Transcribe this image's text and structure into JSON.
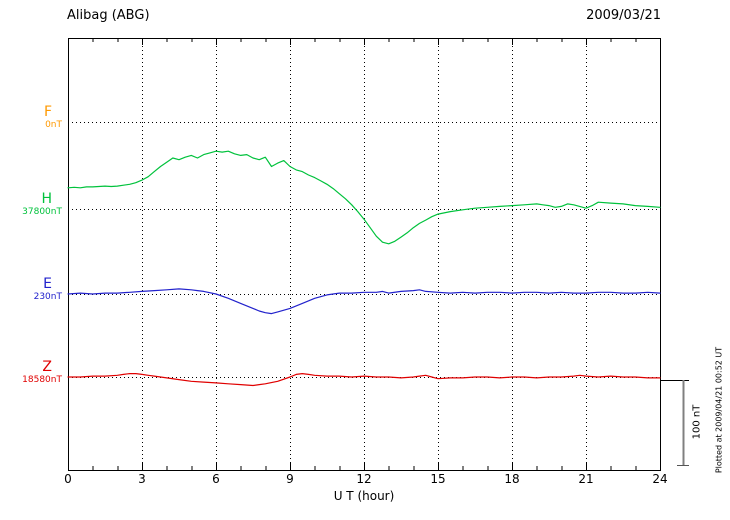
{
  "header": {
    "station": "Alibag (ABG)",
    "date": "2009/03/21"
  },
  "footer_note": "Plotted at 2009/04/21 00:52 UT",
  "scale_bar": {
    "label": "100 nT"
  },
  "chart_data": {
    "type": "line",
    "title": "Alibag (ABG)",
    "subtitle": "2009/03/21",
    "xlabel": "U T (hour)",
    "x_range": [
      0,
      24
    ],
    "x_ticks": [
      0,
      3,
      6,
      9,
      12,
      15,
      18,
      21,
      24
    ],
    "grid": "dotted vertical line every 3 h; dotted horizontal baseline for each component",
    "scale_bar_nT": 100,
    "units": "nT relative to each component baseline",
    "series": [
      {
        "name": "F",
        "baseline_label": "0nT",
        "color": "#ff9900",
        "points": []
      },
      {
        "name": "H",
        "baseline_label": "37800nT",
        "color": "#00c23c",
        "points": [
          [
            0,
            25
          ],
          [
            0.25,
            25.5
          ],
          [
            0.5,
            25
          ],
          [
            0.75,
            26
          ],
          [
            1,
            26
          ],
          [
            1.25,
            26.5
          ],
          [
            1.5,
            27
          ],
          [
            1.75,
            26.5
          ],
          [
            2,
            27
          ],
          [
            2.25,
            28
          ],
          [
            2.5,
            29
          ],
          [
            2.75,
            31
          ],
          [
            3,
            34
          ],
          [
            3.25,
            38
          ],
          [
            3.5,
            44
          ],
          [
            3.75,
            50
          ],
          [
            4,
            55
          ],
          [
            4.25,
            60
          ],
          [
            4.5,
            58
          ],
          [
            4.75,
            61
          ],
          [
            5,
            63
          ],
          [
            5.25,
            60
          ],
          [
            5.5,
            64
          ],
          [
            5.75,
            66
          ],
          [
            6,
            68
          ],
          [
            6.25,
            67
          ],
          [
            6.5,
            68
          ],
          [
            6.75,
            65
          ],
          [
            7,
            63
          ],
          [
            7.25,
            64
          ],
          [
            7.5,
            60
          ],
          [
            7.75,
            58
          ],
          [
            8,
            61
          ],
          [
            8.25,
            50
          ],
          [
            8.5,
            54
          ],
          [
            8.75,
            57
          ],
          [
            9,
            50
          ],
          [
            9.25,
            46
          ],
          [
            9.5,
            44
          ],
          [
            9.75,
            40
          ],
          [
            10,
            37
          ],
          [
            10.25,
            33
          ],
          [
            10.5,
            29
          ],
          [
            10.75,
            24
          ],
          [
            11,
            18
          ],
          [
            11.25,
            12
          ],
          [
            11.5,
            5
          ],
          [
            11.75,
            -3
          ],
          [
            12,
            -12
          ],
          [
            12.25,
            -22
          ],
          [
            12.5,
            -32
          ],
          [
            12.75,
            -39
          ],
          [
            13,
            -41
          ],
          [
            13.25,
            -38
          ],
          [
            13.5,
            -33
          ],
          [
            13.75,
            -28
          ],
          [
            14,
            -22
          ],
          [
            14.25,
            -17
          ],
          [
            14.5,
            -13
          ],
          [
            14.75,
            -9
          ],
          [
            15,
            -6
          ],
          [
            15.5,
            -3
          ],
          [
            16,
            -1
          ],
          [
            16.5,
            1
          ],
          [
            17,
            2
          ],
          [
            17.5,
            3
          ],
          [
            18,
            4
          ],
          [
            18.5,
            5
          ],
          [
            19,
            6
          ],
          [
            19.25,
            5
          ],
          [
            19.5,
            4
          ],
          [
            19.75,
            2
          ],
          [
            20,
            3
          ],
          [
            20.25,
            6
          ],
          [
            20.5,
            5
          ],
          [
            21,
            1
          ],
          [
            21.25,
            4
          ],
          [
            21.5,
            8
          ],
          [
            22,
            7
          ],
          [
            22.5,
            6
          ],
          [
            23,
            4
          ],
          [
            23.5,
            3
          ],
          [
            24,
            2
          ]
        ]
      },
      {
        "name": "E",
        "baseline_label": "230nT",
        "color": "#2222cc",
        "points": [
          [
            0,
            0
          ],
          [
            0.5,
            1
          ],
          [
            1,
            0
          ],
          [
            1.5,
            1
          ],
          [
            2,
            1
          ],
          [
            2.5,
            2
          ],
          [
            3,
            3
          ],
          [
            3.5,
            4
          ],
          [
            4,
            5
          ],
          [
            4.5,
            6
          ],
          [
            5,
            5
          ],
          [
            5.25,
            4
          ],
          [
            5.5,
            3
          ],
          [
            6,
            0
          ],
          [
            6.5,
            -5
          ],
          [
            7,
            -11
          ],
          [
            7.5,
            -17
          ],
          [
            7.75,
            -20
          ],
          [
            8,
            -22
          ],
          [
            8.25,
            -23
          ],
          [
            8.5,
            -21
          ],
          [
            9,
            -17
          ],
          [
            9.5,
            -11
          ],
          [
            10,
            -5
          ],
          [
            10.5,
            -1
          ],
          [
            11,
            1
          ],
          [
            11.5,
            1
          ],
          [
            12,
            2
          ],
          [
            12.5,
            2
          ],
          [
            12.75,
            3
          ],
          [
            13,
            1
          ],
          [
            13.5,
            3
          ],
          [
            14,
            4
          ],
          [
            14.25,
            5
          ],
          [
            14.5,
            3
          ],
          [
            15,
            2
          ],
          [
            15.5,
            1
          ],
          [
            16,
            2
          ],
          [
            16.5,
            1
          ],
          [
            17,
            2
          ],
          [
            17.5,
            2
          ],
          [
            18,
            1
          ],
          [
            18.5,
            2
          ],
          [
            19,
            2
          ],
          [
            19.5,
            1
          ],
          [
            20,
            2
          ],
          [
            20.5,
            1
          ],
          [
            21,
            1
          ],
          [
            21.5,
            2
          ],
          [
            22,
            2
          ],
          [
            22.5,
            1
          ],
          [
            23,
            1
          ],
          [
            23.5,
            2
          ],
          [
            24,
            1
          ]
        ]
      },
      {
        "name": "Z",
        "baseline_label": "18580nT",
        "color": "#e00000",
        "points": [
          [
            0,
            0
          ],
          [
            0.5,
            0
          ],
          [
            1,
            1
          ],
          [
            1.5,
            1
          ],
          [
            2,
            2
          ],
          [
            2.25,
            3
          ],
          [
            2.5,
            4
          ],
          [
            2.75,
            4
          ],
          [
            3,
            3
          ],
          [
            3.25,
            2
          ],
          [
            3.5,
            1
          ],
          [
            4,
            -1
          ],
          [
            4.5,
            -3
          ],
          [
            5,
            -5
          ],
          [
            5.5,
            -6
          ],
          [
            6,
            -7
          ],
          [
            6.5,
            -8
          ],
          [
            7,
            -9
          ],
          [
            7.5,
            -10
          ],
          [
            7.75,
            -9
          ],
          [
            8,
            -8
          ],
          [
            8.5,
            -5
          ],
          [
            9,
            0
          ],
          [
            9.25,
            3
          ],
          [
            9.5,
            4
          ],
          [
            9.75,
            3
          ],
          [
            10,
            2
          ],
          [
            10.5,
            1
          ],
          [
            11,
            1
          ],
          [
            11.5,
            0
          ],
          [
            12,
            1
          ],
          [
            12.5,
            0
          ],
          [
            13,
            0
          ],
          [
            13.5,
            -1
          ],
          [
            14,
            0
          ],
          [
            14.25,
            1
          ],
          [
            14.5,
            2
          ],
          [
            14.75,
            0
          ],
          [
            15,
            -2
          ],
          [
            15.5,
            -1
          ],
          [
            16,
            -1
          ],
          [
            16.5,
            0
          ],
          [
            17,
            0
          ],
          [
            17.5,
            -1
          ],
          [
            18,
            0
          ],
          [
            18.5,
            0
          ],
          [
            19,
            -1
          ],
          [
            19.5,
            0
          ],
          [
            20,
            0
          ],
          [
            20.5,
            1
          ],
          [
            20.75,
            2
          ],
          [
            21,
            1
          ],
          [
            21.5,
            0
          ],
          [
            22,
            1
          ],
          [
            22.5,
            0
          ],
          [
            23,
            0
          ],
          [
            23.5,
            -1
          ],
          [
            24,
            -1
          ]
        ]
      }
    ]
  }
}
